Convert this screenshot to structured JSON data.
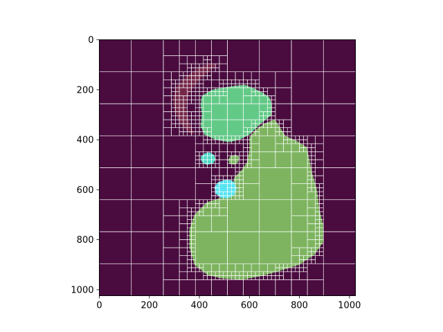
{
  "chart_data": {
    "type": "heatmap",
    "title": "",
    "xlabel": "",
    "ylabel": "",
    "xlim": [
      0,
      1024
    ],
    "ylim": [
      1024,
      0
    ],
    "x_ticks": [
      0,
      200,
      400,
      600,
      800,
      1000
    ],
    "y_ticks": [
      0,
      200,
      400,
      600,
      800,
      1000
    ],
    "x_tick_labels": [
      "0",
      "200",
      "400",
      "600",
      "800",
      "1000"
    ],
    "y_tick_labels": [
      "0",
      "200",
      "400",
      "600",
      "800",
      "1000"
    ],
    "background_color": "#4a0b3f",
    "grid_line_color": "#ffffff",
    "quadtree_leaf_size_max": 128,
    "quadtree_leaf_size_min": 16,
    "regions": [
      {
        "id": "region-dark-red",
        "color": "#7a2a4a",
        "opacity": 0.9,
        "outline": [
          [
            440,
            95
          ],
          [
            400,
            110
          ],
          [
            350,
            145
          ],
          [
            310,
            185
          ],
          [
            295,
            230
          ],
          [
            300,
            280
          ],
          [
            320,
            330
          ],
          [
            355,
            370
          ],
          [
            380,
            380
          ],
          [
            360,
            330
          ],
          [
            345,
            270
          ],
          [
            360,
            210
          ],
          [
            400,
            160
          ],
          [
            440,
            125
          ],
          [
            470,
            100
          ]
        ]
      },
      {
        "id": "region-light-green",
        "color": "#63c987",
        "outline": [
          [
            580,
            180
          ],
          [
            540,
            185
          ],
          [
            500,
            190
          ],
          [
            450,
            200
          ],
          [
            410,
            225
          ],
          [
            405,
            260
          ],
          [
            410,
            300
          ],
          [
            405,
            345
          ],
          [
            420,
            380
          ],
          [
            465,
            400
          ],
          [
            520,
            410
          ],
          [
            560,
            400
          ],
          [
            600,
            380
          ],
          [
            640,
            340
          ],
          [
            690,
            300
          ],
          [
            690,
            260
          ],
          [
            680,
            230
          ],
          [
            650,
            210
          ],
          [
            620,
            195
          ]
        ]
      },
      {
        "id": "region-olive-green",
        "color": "#7eb460",
        "outline": [
          [
            700,
            320
          ],
          [
            660,
            335
          ],
          [
            625,
            360
          ],
          [
            600,
            390
          ],
          [
            600,
            440
          ],
          [
            590,
            490
          ],
          [
            570,
            520
          ],
          [
            540,
            550
          ],
          [
            530,
            600
          ],
          [
            495,
            630
          ],
          [
            430,
            650
          ],
          [
            380,
            700
          ],
          [
            360,
            760
          ],
          [
            360,
            830
          ],
          [
            380,
            900
          ],
          [
            430,
            940
          ],
          [
            490,
            955
          ],
          [
            570,
            960
          ],
          [
            650,
            945
          ],
          [
            720,
            925
          ],
          [
            800,
            900
          ],
          [
            860,
            860
          ],
          [
            895,
            810
          ],
          [
            895,
            740
          ],
          [
            880,
            680
          ],
          [
            870,
            600
          ],
          [
            850,
            530
          ],
          [
            830,
            430
          ],
          [
            790,
            405
          ],
          [
            745,
            385
          ],
          [
            725,
            355
          ],
          [
            710,
            330
          ]
        ]
      },
      {
        "id": "region-small-olive",
        "color": "#7eb460",
        "outline": [
          [
            545,
            460
          ],
          [
            525,
            465
          ],
          [
            515,
            480
          ],
          [
            520,
            495
          ],
          [
            540,
            500
          ],
          [
            555,
            490
          ],
          [
            560,
            470
          ]
        ]
      },
      {
        "id": "region-small-teal",
        "color": "#4dd9c6",
        "outline": [
          [
            440,
            450
          ],
          [
            420,
            455
          ],
          [
            405,
            470
          ],
          [
            410,
            490
          ],
          [
            430,
            500
          ],
          [
            455,
            495
          ],
          [
            465,
            478
          ],
          [
            458,
            460
          ]
        ]
      },
      {
        "id": "region-cyan",
        "color": "#58e3f2",
        "outline": [
          [
            505,
            560
          ],
          [
            475,
            570
          ],
          [
            460,
            590
          ],
          [
            465,
            615
          ],
          [
            485,
            632
          ],
          [
            515,
            635
          ],
          [
            540,
            620
          ],
          [
            550,
            595
          ],
          [
            540,
            570
          ],
          [
            525,
            562
          ]
        ]
      }
    ]
  }
}
